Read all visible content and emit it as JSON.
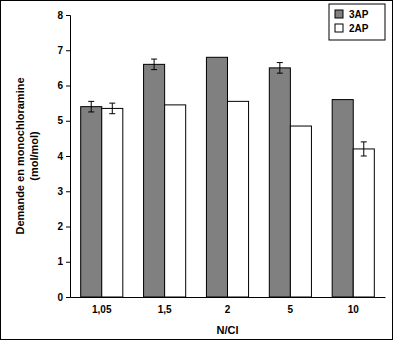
{
  "chart_data": {
    "type": "bar",
    "x_label": "N/Cl",
    "y_label": [
      "Demande en monochloramine",
      "(mol/mol)"
    ],
    "categories": [
      "1,05",
      "1,5",
      "2",
      "5",
      "10"
    ],
    "series": [
      {
        "name": "3AP",
        "color": "#808080",
        "values": [
          5.4,
          6.6,
          6.8,
          6.5,
          5.6
        ],
        "errors": [
          0.15,
          0.15,
          null,
          0.15,
          null
        ]
      },
      {
        "name": "2AP",
        "color": "#ffffff",
        "values": [
          5.35,
          5.45,
          5.55,
          4.85,
          4.2
        ],
        "errors": [
          0.15,
          null,
          null,
          null,
          0.2
        ]
      }
    ],
    "ylim": [
      0,
      8
    ],
    "yticks": [
      0,
      1,
      2,
      3,
      4,
      5,
      6,
      7,
      8
    ],
    "grid": false,
    "legend": "top-right"
  }
}
